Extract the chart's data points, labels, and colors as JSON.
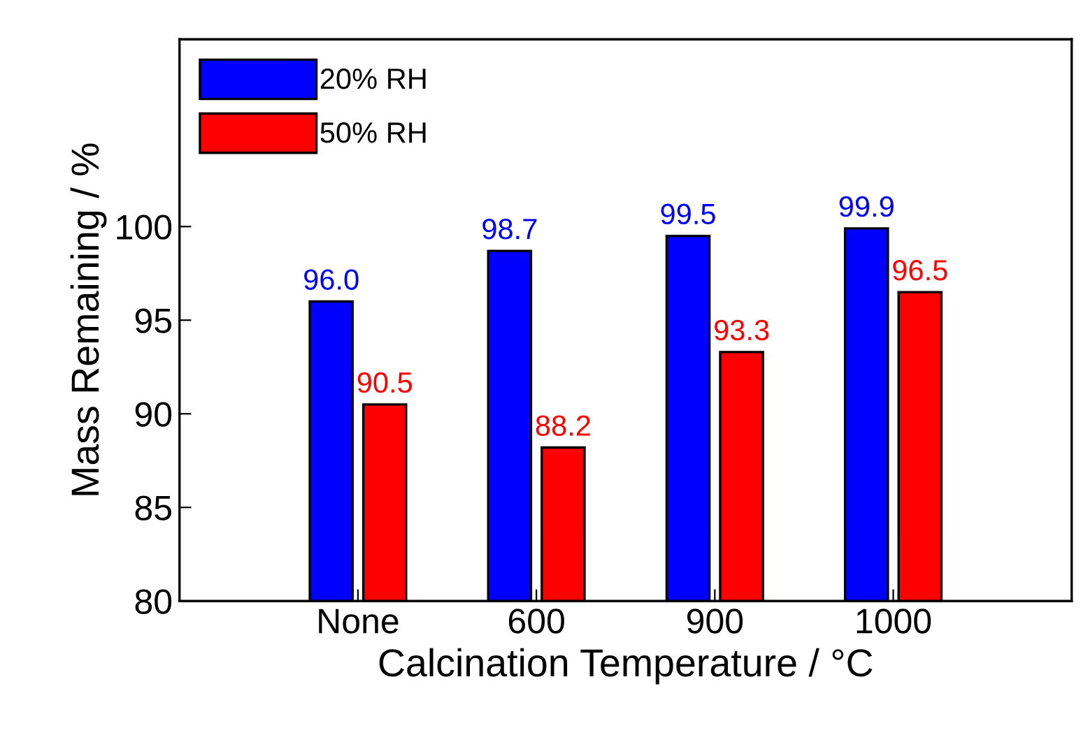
{
  "chart_data": {
    "type": "bar",
    "xlabel": "Calcination Temperature / °C",
    "ylabel": "Mass Remaining / %",
    "categories": [
      "None",
      "600",
      "900",
      "1000"
    ],
    "series": [
      {
        "name": "20% RH",
        "color": "#0000ff",
        "values": [
          96.0,
          98.7,
          99.5,
          99.9
        ],
        "value_labels": [
          "96.0",
          "98.7",
          "99.5",
          "99.9"
        ]
      },
      {
        "name": "50% RH",
        "color": "#ff0000",
        "values": [
          90.5,
          88.2,
          93.3,
          96.5
        ],
        "value_labels": [
          "90.5",
          "88.2",
          "93.3",
          "96.5"
        ]
      }
    ],
    "ylim": [
      80,
      110
    ],
    "yticks": [
      80,
      85,
      90,
      95,
      100
    ],
    "legend": "top left",
    "grid": false
  }
}
